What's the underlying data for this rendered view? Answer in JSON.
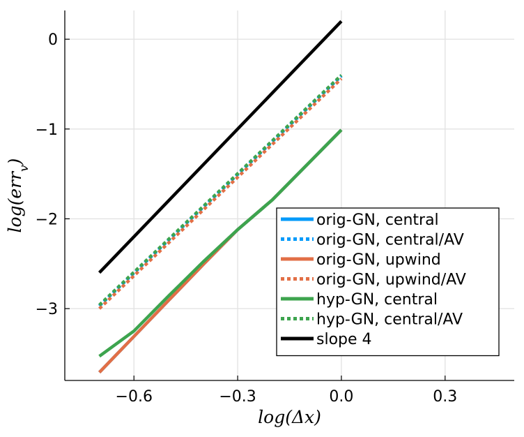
{
  "chart_data": {
    "type": "line",
    "title": "",
    "xlabel": "log(Δx)",
    "ylabel": "log(err_v)",
    "xlim": [
      -0.8,
      0.5
    ],
    "ylim": [
      -3.8,
      0.32
    ],
    "xticks": [
      -0.6,
      -0.3,
      0.0,
      0.3
    ],
    "xtick_labels": [
      "−0.6",
      "−0.3",
      "0.0",
      "0.3"
    ],
    "yticks": [
      0,
      -1,
      -2,
      -3
    ],
    "ytick_labels": [
      "0",
      "−1",
      "−2",
      "−3"
    ],
    "grid": true,
    "legend_position": "bottom-right",
    "series": [
      {
        "name": "orig-GN, central",
        "color": "#009AFA",
        "dash": "solid",
        "x": [
          -0.7,
          -0.6,
          -0.5,
          -0.4,
          -0.3,
          -0.2,
          -0.1,
          0.0
        ],
        "y": [
          -3.71,
          -3.31,
          -2.91,
          -2.51,
          -2.12,
          -1.79,
          -1.4,
          -1.01
        ]
      },
      {
        "name": "orig-GN, central/AV",
        "color": "#009AFA",
        "dash": "dot",
        "x": [
          -0.7,
          0.0
        ],
        "y": [
          -2.97,
          -0.41
        ]
      },
      {
        "name": "orig-GN, upwind",
        "color": "#E26F46",
        "dash": "solid",
        "x": [
          -0.7,
          -0.6,
          -0.5,
          -0.4,
          -0.3,
          -0.2,
          -0.1,
          0.0
        ],
        "y": [
          -3.71,
          -3.31,
          -2.91,
          -2.51,
          -2.12,
          -1.79,
          -1.4,
          -1.01
        ]
      },
      {
        "name": "orig-GN, upwind/AV",
        "color": "#E26F46",
        "dash": "dot",
        "x": [
          -0.7,
          0.0
        ],
        "y": [
          -3.0,
          -0.44
        ]
      },
      {
        "name": "hyp-GN, central",
        "color": "#3DA44E",
        "dash": "solid",
        "x": [
          -0.7,
          -0.6,
          -0.5,
          -0.4,
          -0.3,
          -0.2,
          -0.1,
          0.0
        ],
        "y": [
          -3.53,
          -3.25,
          -2.86,
          -2.48,
          -2.12,
          -1.79,
          -1.4,
          -1.01
        ]
      },
      {
        "name": "hyp-GN, central/AV",
        "color": "#3DA44E",
        "dash": "dot",
        "x": [
          -0.7,
          0.0
        ],
        "y": [
          -2.96,
          -0.4
        ]
      },
      {
        "name": "slope 4",
        "color": "#000000",
        "dash": "solid",
        "x": [
          -0.7,
          0.0
        ],
        "y": [
          -2.6,
          0.2
        ]
      }
    ]
  }
}
